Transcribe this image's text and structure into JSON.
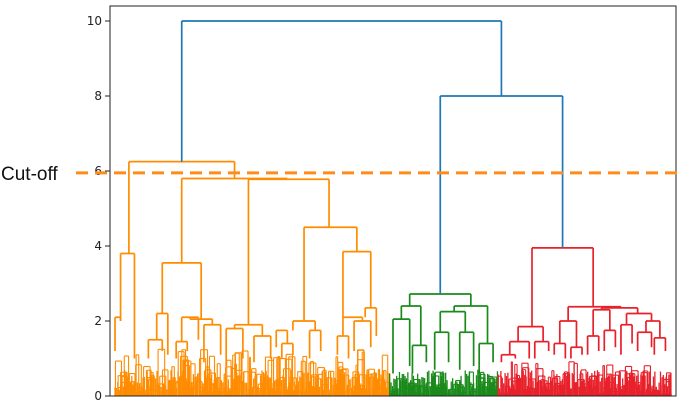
{
  "chart_data": {
    "type": "dendrogram",
    "title": "",
    "xlabel": "",
    "ylabel": "",
    "ylim": [
      0,
      10.4
    ],
    "y_ticks": [
      0,
      2,
      4,
      6,
      8,
      10
    ],
    "grid": false,
    "cutoff": {
      "label": "Cut-off",
      "y": 5.95,
      "color": "#ff8c1a",
      "style": "dashed"
    },
    "link_color_above_cut": "#1f77b4",
    "clusters": [
      {
        "color": "#ff8c00",
        "leaf_range": [
          0,
          0.494
        ],
        "merge_height": 6.25
      },
      {
        "color": "#1a8a1a",
        "leaf_range": [
          0.494,
          0.689
        ],
        "merge_height": 2.72
      },
      {
        "color": "#e8202a",
        "leaf_range": [
          0.689,
          1.0
        ],
        "merge_height": 3.95
      }
    ],
    "links": [
      {
        "heights": [
          6.25,
          10.0,
          8.0
        ],
        "color": "#1f77b4",
        "note": "root"
      },
      {
        "heights": [
          2.72,
          8.0,
          3.95
        ],
        "color": "#1f77b4"
      },
      {
        "heights": [
          3.8,
          6.25,
          5.8
        ],
        "color": "#ff8c00"
      },
      {
        "heights": [
          3.55,
          5.8,
          4.5
        ],
        "color": "#ff8c00"
      },
      {
        "heights": [
          1.7,
          4.5,
          3.85
        ],
        "color": "#ff8c00"
      },
      {
        "heights": [
          2.25,
          2.72,
          2.4
        ],
        "color": "#1a8a1a"
      },
      {
        "heights": [
          1.85,
          3.95,
          2.35
        ],
        "color": "#e8202a"
      }
    ]
  }
}
